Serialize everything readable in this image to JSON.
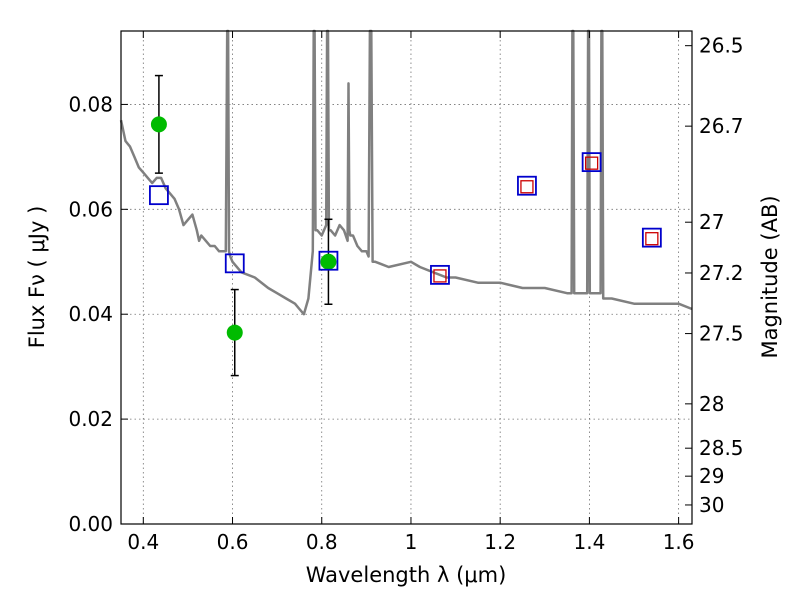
{
  "chart_data": {
    "type": "scatter",
    "title": "",
    "xlabel": "Wavelength  λ (μm)",
    "ylabel": "Flux  Fν  ( μJy )",
    "ylabel_right": "Magnitude (AB)",
    "xlim": [
      0.35,
      1.63
    ],
    "ylim": [
      0.0,
      0.094
    ],
    "grid": true,
    "x_ticks": [
      {
        "value": 0.4,
        "label": "0.4"
      },
      {
        "value": 0.6,
        "label": "0.6"
      },
      {
        "value": 0.8,
        "label": "0.8"
      },
      {
        "value": 1.0,
        "label": "1"
      },
      {
        "value": 1.2,
        "label": "1.2"
      },
      {
        "value": 1.4,
        "label": "1.4"
      },
      {
        "value": 1.6,
        "label": "1.6"
      }
    ],
    "y_ticks": [
      {
        "value": 0.0,
        "label": "0.00"
      },
      {
        "value": 0.02,
        "label": "0.02"
      },
      {
        "value": 0.04,
        "label": "0.04"
      },
      {
        "value": 0.06,
        "label": "0.06"
      },
      {
        "value": 0.08,
        "label": "0.08"
      }
    ],
    "y2_ticks": [
      {
        "value": 26.5,
        "label": "26.5"
      },
      {
        "value": 26.7,
        "label": "26.7"
      },
      {
        "value": 27.0,
        "label": "27"
      },
      {
        "value": 27.2,
        "label": "27.2"
      },
      {
        "value": 27.5,
        "label": "27.5"
      },
      {
        "value": 28.0,
        "label": "28"
      },
      {
        "value": 28.5,
        "label": "28.5"
      },
      {
        "value": 29.0,
        "label": "29"
      },
      {
        "value": 30.0,
        "label": "30"
      }
    ],
    "series": [
      {
        "kind": "line",
        "color": "#808080",
        "x": [
          0.35,
          0.36,
          0.37,
          0.38,
          0.385,
          0.39,
          0.4,
          0.41,
          0.42,
          0.43,
          0.44,
          0.45,
          0.46,
          0.47,
          0.48,
          0.49,
          0.5,
          0.51,
          0.52,
          0.525,
          0.53,
          0.54,
          0.55,
          0.56,
          0.57,
          0.585,
          0.588,
          0.59,
          0.592,
          0.595,
          0.6,
          0.62,
          0.65,
          0.68,
          0.7,
          0.72,
          0.74,
          0.75,
          0.76,
          0.77,
          0.78,
          0.782,
          0.784,
          0.786,
          0.79,
          0.8,
          0.81,
          0.812,
          0.814,
          0.816,
          0.82,
          0.83,
          0.84,
          0.85,
          0.858,
          0.86,
          0.862,
          0.864,
          0.87,
          0.88,
          0.89,
          0.9,
          0.905,
          0.908,
          0.911,
          0.914,
          0.92,
          0.95,
          1.0,
          1.02,
          1.05,
          1.08,
          1.1,
          1.15,
          1.2,
          1.25,
          1.28,
          1.3,
          1.35,
          1.36,
          1.362,
          1.364,
          1.366,
          1.38,
          1.395,
          1.397,
          1.399,
          1.401,
          1.42,
          1.425,
          1.427,
          1.429,
          1.431,
          1.45,
          1.5,
          1.55,
          1.6,
          1.63
        ],
        "y": [
          0.077,
          0.073,
          0.072,
          0.07,
          0.069,
          0.068,
          0.067,
          0.066,
          0.065,
          0.066,
          0.066,
          0.064,
          0.063,
          0.062,
          0.06,
          0.057,
          0.058,
          0.059,
          0.056,
          0.054,
          0.055,
          0.054,
          0.053,
          0.053,
          0.052,
          0.052,
          0.094,
          0.094,
          0.052,
          0.051,
          0.05,
          0.048,
          0.047,
          0.045,
          0.044,
          0.043,
          0.042,
          0.041,
          0.04,
          0.043,
          0.052,
          0.094,
          0.094,
          0.056,
          0.056,
          0.055,
          0.057,
          0.094,
          0.094,
          0.056,
          0.056,
          0.055,
          0.057,
          0.056,
          0.054,
          0.084,
          0.056,
          0.055,
          0.055,
          0.053,
          0.052,
          0.052,
          0.051,
          0.094,
          0.094,
          0.05,
          0.05,
          0.049,
          0.05,
          0.049,
          0.048,
          0.047,
          0.047,
          0.046,
          0.046,
          0.045,
          0.045,
          0.045,
          0.044,
          0.044,
          0.094,
          0.094,
          0.044,
          0.044,
          0.044,
          0.094,
          0.094,
          0.044,
          0.044,
          0.044,
          0.094,
          0.094,
          0.043,
          0.043,
          0.042,
          0.042,
          0.042,
          0.041
        ]
      },
      {
        "kind": "points",
        "marker": "circle",
        "color": "#00bb00",
        "x": [
          0.435,
          0.605,
          0.815
        ],
        "y": [
          0.0762,
          0.0365,
          0.05
        ],
        "yerr": [
          0.0093,
          0.0082,
          0.0081
        ]
      },
      {
        "kind": "points",
        "marker": "square",
        "color": "#0000cc",
        "x": [
          0.435,
          0.605,
          0.815,
          1.065,
          1.26,
          1.405,
          1.54
        ],
        "y": [
          0.0627,
          0.0497,
          0.0502,
          0.0475,
          0.0645,
          0.069,
          0.0546
        ]
      },
      {
        "kind": "points",
        "marker": "square-small",
        "color": "#cc0000",
        "x": [
          1.065,
          1.26,
          1.405,
          1.54
        ],
        "y": [
          0.0473,
          0.0643,
          0.0688,
          0.0544
        ]
      }
    ]
  }
}
